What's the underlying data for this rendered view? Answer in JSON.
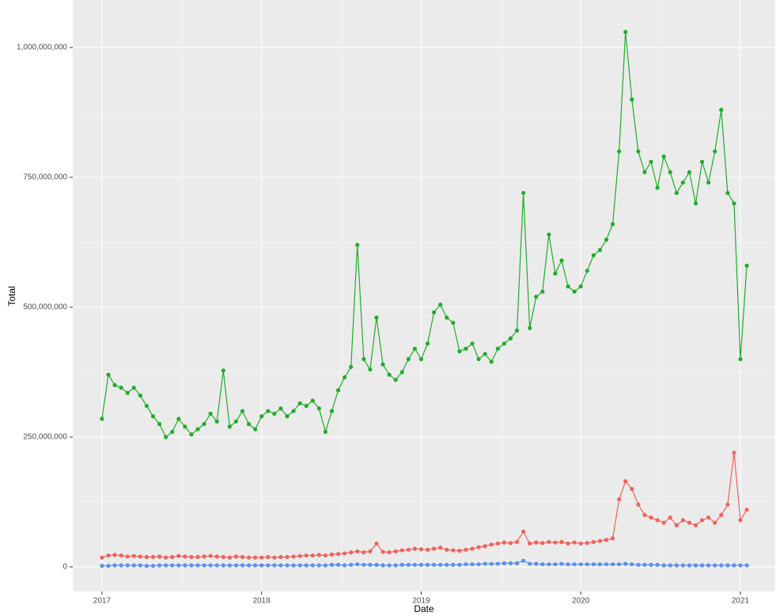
{
  "chart_data": {
    "type": "line",
    "x_label": "Date",
    "y_label": "Total",
    "x": [
      2017.0,
      2017.04,
      2017.08,
      2017.12,
      2017.16,
      2017.2,
      2017.24,
      2017.28,
      2017.32,
      2017.36,
      2017.4,
      2017.44,
      2017.48,
      2017.52,
      2017.56,
      2017.6,
      2017.64,
      2017.68,
      2017.72,
      2017.76,
      2017.8,
      2017.84,
      2017.88,
      2017.92,
      2017.96,
      2018.0,
      2018.04,
      2018.08,
      2018.12,
      2018.16,
      2018.2,
      2018.24,
      2018.28,
      2018.32,
      2018.36,
      2018.4,
      2018.44,
      2018.48,
      2018.52,
      2018.56,
      2018.6,
      2018.64,
      2018.68,
      2018.72,
      2018.76,
      2018.8,
      2018.84,
      2018.88,
      2018.92,
      2018.96,
      2019.0,
      2019.04,
      2019.08,
      2019.12,
      2019.16,
      2019.2,
      2019.24,
      2019.28,
      2019.32,
      2019.36,
      2019.4,
      2019.44,
      2019.48,
      2019.52,
      2019.56,
      2019.6,
      2019.64,
      2019.68,
      2019.72,
      2019.76,
      2019.8,
      2019.84,
      2019.88,
      2019.92,
      2019.96,
      2020.0,
      2020.04,
      2020.08,
      2020.12,
      2020.16,
      2020.2,
      2020.24,
      2020.28,
      2020.32,
      2020.36,
      2020.4,
      2020.44,
      2020.48,
      2020.52,
      2020.56,
      2020.6,
      2020.64,
      2020.68,
      2020.72,
      2020.76,
      2020.8,
      2020.84,
      2020.88,
      2020.92,
      2020.96,
      2021.0,
      2021.04
    ],
    "series": [
      {
        "color": "#1fad2a",
        "values": [
          285000000,
          370000000,
          350000000,
          345000000,
          335000000,
          345000000,
          330000000,
          310000000,
          290000000,
          275000000,
          250000000,
          260000000,
          285000000,
          270000000,
          255000000,
          265000000,
          275000000,
          295000000,
          280000000,
          378000000,
          270000000,
          280000000,
          300000000,
          275000000,
          265000000,
          290000000,
          300000000,
          295000000,
          305000000,
          290000000,
          300000000,
          315000000,
          310000000,
          320000000,
          305000000,
          260000000,
          300000000,
          340000000,
          365000000,
          385000000,
          620000000,
          400000000,
          380000000,
          480000000,
          390000000,
          370000000,
          360000000,
          375000000,
          400000000,
          420000000,
          400000000,
          430000000,
          490000000,
          505000000,
          480000000,
          470000000,
          415000000,
          420000000,
          430000000,
          400000000,
          410000000,
          395000000,
          420000000,
          430000000,
          440000000,
          455000000,
          720000000,
          460000000,
          520000000,
          530000000,
          640000000,
          565000000,
          590000000,
          540000000,
          530000000,
          540000000,
          570000000,
          600000000,
          610000000,
          630000000,
          660000000,
          800000000,
          1030000000,
          900000000,
          800000000,
          760000000,
          780000000,
          730000000,
          790000000,
          760000000,
          720000000,
          740000000,
          760000000,
          700000000,
          780000000,
          740000000,
          800000000,
          880000000,
          720000000,
          700000000,
          400000000,
          580000000
        ]
      },
      {
        "color": "#f0625c",
        "values": [
          18000000,
          22000000,
          23000000,
          22000000,
          20000000,
          21000000,
          20000000,
          19000000,
          19000000,
          20000000,
          18000000,
          19000000,
          21000000,
          20000000,
          19000000,
          19000000,
          20000000,
          21000000,
          20000000,
          19000000,
          18000000,
          20000000,
          19000000,
          18000000,
          18000000,
          18000000,
          19000000,
          18000000,
          19000000,
          19000000,
          20000000,
          21000000,
          22000000,
          22000000,
          23000000,
          22000000,
          24000000,
          25000000,
          26000000,
          28000000,
          30000000,
          28000000,
          30000000,
          45000000,
          29000000,
          28000000,
          30000000,
          32000000,
          33000000,
          35000000,
          34000000,
          33000000,
          35000000,
          37000000,
          33000000,
          32000000,
          31000000,
          33000000,
          35000000,
          38000000,
          40000000,
          43000000,
          45000000,
          47000000,
          46000000,
          48000000,
          68000000,
          45000000,
          47000000,
          46000000,
          48000000,
          47000000,
          48000000,
          45000000,
          47000000,
          45000000,
          46000000,
          48000000,
          50000000,
          52000000,
          55000000,
          130000000,
          165000000,
          150000000,
          120000000,
          100000000,
          95000000,
          90000000,
          85000000,
          95000000,
          80000000,
          90000000,
          85000000,
          80000000,
          90000000,
          95000000,
          85000000,
          100000000,
          120000000,
          220000000,
          90000000,
          110000000
        ]
      },
      {
        "color": "#5b8ff5",
        "values": [
          2000000,
          2000000,
          3000000,
          3000000,
          3000000,
          3000000,
          3000000,
          2000000,
          2000000,
          3000000,
          3000000,
          3000000,
          3000000,
          3000000,
          3000000,
          3000000,
          3000000,
          3000000,
          3000000,
          3000000,
          3000000,
          3000000,
          3000000,
          3000000,
          3000000,
          3000000,
          3000000,
          3000000,
          3000000,
          3000000,
          3000000,
          3000000,
          3000000,
          3000000,
          3000000,
          3000000,
          4000000,
          4000000,
          3000000,
          4000000,
          5000000,
          4000000,
          4000000,
          4000000,
          3000000,
          3000000,
          3000000,
          4000000,
          4000000,
          4000000,
          4000000,
          4000000,
          4000000,
          4000000,
          4000000,
          4000000,
          4000000,
          5000000,
          5000000,
          5000000,
          6000000,
          6000000,
          6000000,
          7000000,
          7000000,
          7000000,
          12000000,
          6000000,
          6000000,
          5000000,
          5000000,
          5000000,
          6000000,
          5000000,
          5000000,
          5000000,
          5000000,
          5000000,
          5000000,
          5000000,
          5000000,
          5000000,
          6000000,
          5000000,
          4000000,
          4000000,
          4000000,
          4000000,
          3000000,
          3000000,
          3000000,
          3000000,
          3000000,
          3000000,
          3000000,
          3000000,
          3000000,
          3000000,
          3000000,
          3000000,
          3000000,
          3000000
        ]
      }
    ],
    "xlim": [
      2016.817,
      2021.218
    ],
    "xticks": [
      2017,
      2018,
      2019,
      2020,
      2021
    ],
    "ylim": [
      -47300000,
      1091500000
    ],
    "yticks": [
      0,
      {
        "value": 250000000,
        "label": "250,000,000"
      },
      {
        "value": 500000000,
        "label": "500,000,000"
      },
      {
        "value": 750000000,
        "label": "750,000,000"
      },
      {
        "value": 1000000000,
        "label": "1,000,000,000"
      }
    ],
    "grid": true
  }
}
